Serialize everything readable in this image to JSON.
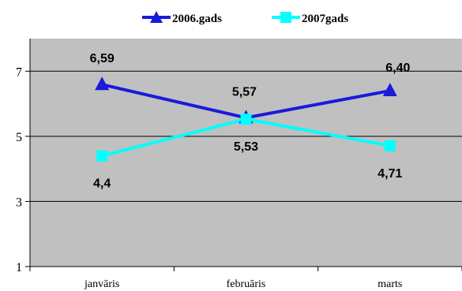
{
  "chart_data": {
    "type": "line",
    "categories": [
      "janvāris",
      "februāris",
      "marts"
    ],
    "series": [
      {
        "name": "2006.gads",
        "values": [
          6.59,
          5.57,
          6.4
        ],
        "labels": [
          "6,59",
          "5,57",
          "6,40"
        ],
        "color": "#1a1adb",
        "marker": "triangle"
      },
      {
        "name": "2007gads",
        "values": [
          4.4,
          5.53,
          4.71
        ],
        "labels": [
          "4,4",
          "5,53",
          "4,71"
        ],
        "color": "#00ffff",
        "marker": "square"
      }
    ],
    "ylim": [
      1,
      8
    ],
    "yticks": [
      1,
      3,
      5,
      7
    ],
    "ytick_labels": [
      "1",
      "3",
      "5",
      "7"
    ],
    "legend_position": "top-center",
    "grid": "horizontal",
    "plot_background": "#c0c0c0"
  }
}
